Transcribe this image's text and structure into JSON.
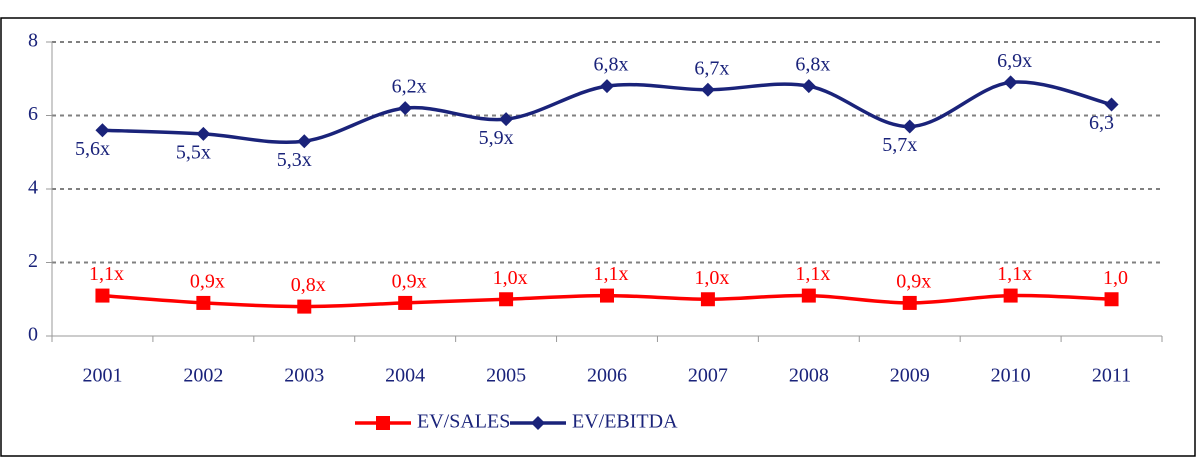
{
  "chart_data": {
    "type": "line",
    "categories": [
      "2001",
      "2002",
      "2003",
      "2004",
      "2005",
      "2006",
      "2007",
      "2008",
      "2009",
      "2010",
      "2011"
    ],
    "series": [
      {
        "name": "EV/SALES",
        "color": "#ff0000",
        "marker": "square",
        "values": [
          1.1,
          0.9,
          0.8,
          0.9,
          1.0,
          1.1,
          1.0,
          1.1,
          0.9,
          1.1,
          1.0
        ],
        "value_labels": [
          "1,1x",
          "0,9x",
          "0,8x",
          "0,9x",
          "1,0x",
          "1,1x",
          "1,0x",
          "1,1x",
          "0,9x",
          "1,1x",
          "1,0"
        ]
      },
      {
        "name": "EV/EBITDA",
        "color": "#1a237a",
        "marker": "diamond",
        "values": [
          5.6,
          5.5,
          5.3,
          6.2,
          5.9,
          6.8,
          6.7,
          6.8,
          5.7,
          6.9,
          6.3
        ],
        "value_labels": [
          "5,6x",
          "5,5x",
          "5,3x",
          "6,2x",
          "5,9x",
          "6,8x",
          "6,7x",
          "6,8x",
          "5,7x",
          "6,9x",
          "6,3"
        ]
      }
    ],
    "ylim": [
      0,
      8
    ],
    "yticks": [
      0,
      2,
      4,
      6,
      8
    ],
    "grid": true,
    "legend": "bottom"
  }
}
